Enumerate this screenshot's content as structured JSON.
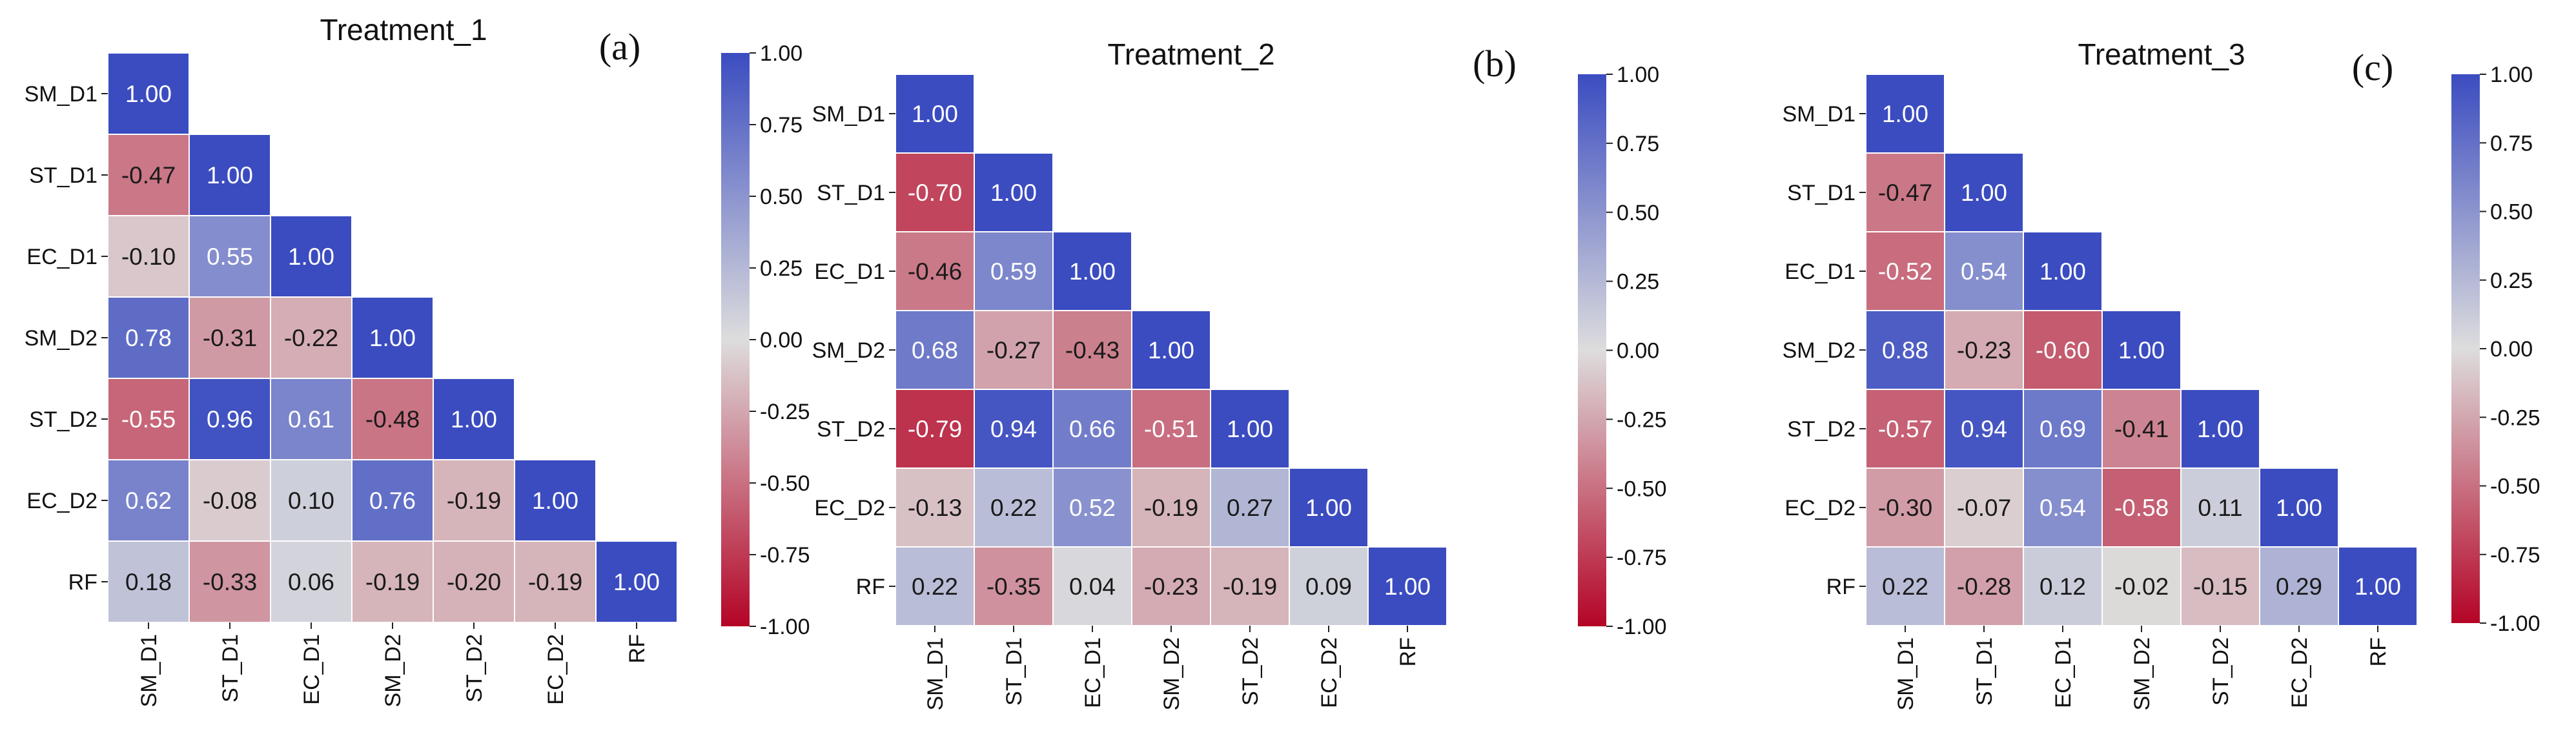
{
  "figure": {
    "colormap": {
      "name": "coolwarm",
      "low_color": "#b40426",
      "mid_color": "#dddddd",
      "high_color": "#3b4cc0"
    },
    "charts": [
      {
        "panel_letter": "(a)",
        "title": "Treatment_1"
      },
      {
        "panel_letter": "(b)",
        "title": "Treatment_2"
      },
      {
        "panel_letter": "(c)",
        "title": "Treatment_3"
      }
    ]
  },
  "chart_data": [
    {
      "type": "heatmap",
      "title": "Treatment_1",
      "variables": [
        "SM_D1",
        "ST_D1",
        "EC_D1",
        "SM_D2",
        "ST_D2",
        "EC_D2",
        "RF"
      ],
      "matrix": [
        [
          1.0
        ],
        [
          -0.47,
          1.0
        ],
        [
          -0.1,
          0.55,
          1.0
        ],
        [
          0.78,
          -0.31,
          -0.22,
          1.0
        ],
        [
          -0.55,
          0.96,
          0.61,
          -0.48,
          1.0
        ],
        [
          0.62,
          -0.08,
          0.1,
          0.76,
          -0.19,
          1.0
        ],
        [
          0.18,
          -0.33,
          0.06,
          -0.19,
          -0.2,
          -0.19,
          1.0
        ]
      ],
      "colorbar": {
        "range": [
          -1.0,
          1.0
        ],
        "ticks": [
          "1.00",
          "0.75",
          "0.50",
          "0.25",
          "0.00",
          "-0.25",
          "-0.50",
          "-0.75",
          "-1.00"
        ]
      }
    },
    {
      "type": "heatmap",
      "title": "Treatment_2",
      "variables": [
        "SM_D1",
        "ST_D1",
        "EC_D1",
        "SM_D2",
        "ST_D2",
        "EC_D2",
        "RF"
      ],
      "matrix": [
        [
          1.0
        ],
        [
          -0.7,
          1.0
        ],
        [
          -0.46,
          0.59,
          1.0
        ],
        [
          0.68,
          -0.27,
          -0.43,
          1.0
        ],
        [
          -0.79,
          0.94,
          0.66,
          -0.51,
          1.0
        ],
        [
          -0.13,
          0.22,
          0.52,
          -0.19,
          0.27,
          1.0
        ],
        [
          0.22,
          -0.35,
          0.04,
          -0.23,
          -0.19,
          0.09,
          1.0
        ]
      ],
      "colorbar": {
        "range": [
          -1.0,
          1.0
        ],
        "ticks": [
          "1.00",
          "0.75",
          "0.50",
          "0.25",
          "0.00",
          "-0.25",
          "-0.50",
          "-0.75",
          "-1.00"
        ]
      }
    },
    {
      "type": "heatmap",
      "title": "Treatment_3",
      "variables": [
        "SM_D1",
        "ST_D1",
        "EC_D1",
        "SM_D2",
        "ST_D2",
        "EC_D2",
        "RF"
      ],
      "matrix": [
        [
          1.0
        ],
        [
          -0.47,
          1.0
        ],
        [
          -0.52,
          0.54,
          1.0
        ],
        [
          0.88,
          -0.23,
          -0.6,
          1.0
        ],
        [
          -0.57,
          0.94,
          0.69,
          -0.41,
          1.0
        ],
        [
          -0.3,
          -0.07,
          0.54,
          -0.58,
          0.11,
          1.0
        ],
        [
          0.22,
          -0.28,
          0.12,
          -0.02,
          -0.15,
          0.29,
          1.0
        ]
      ],
      "colorbar": {
        "range": [
          -1.0,
          1.0
        ],
        "ticks": [
          "1.00",
          "0.75",
          "0.50",
          "0.25",
          "0.00",
          "-0.25",
          "-0.50",
          "-0.75",
          "-1.00"
        ]
      }
    }
  ]
}
